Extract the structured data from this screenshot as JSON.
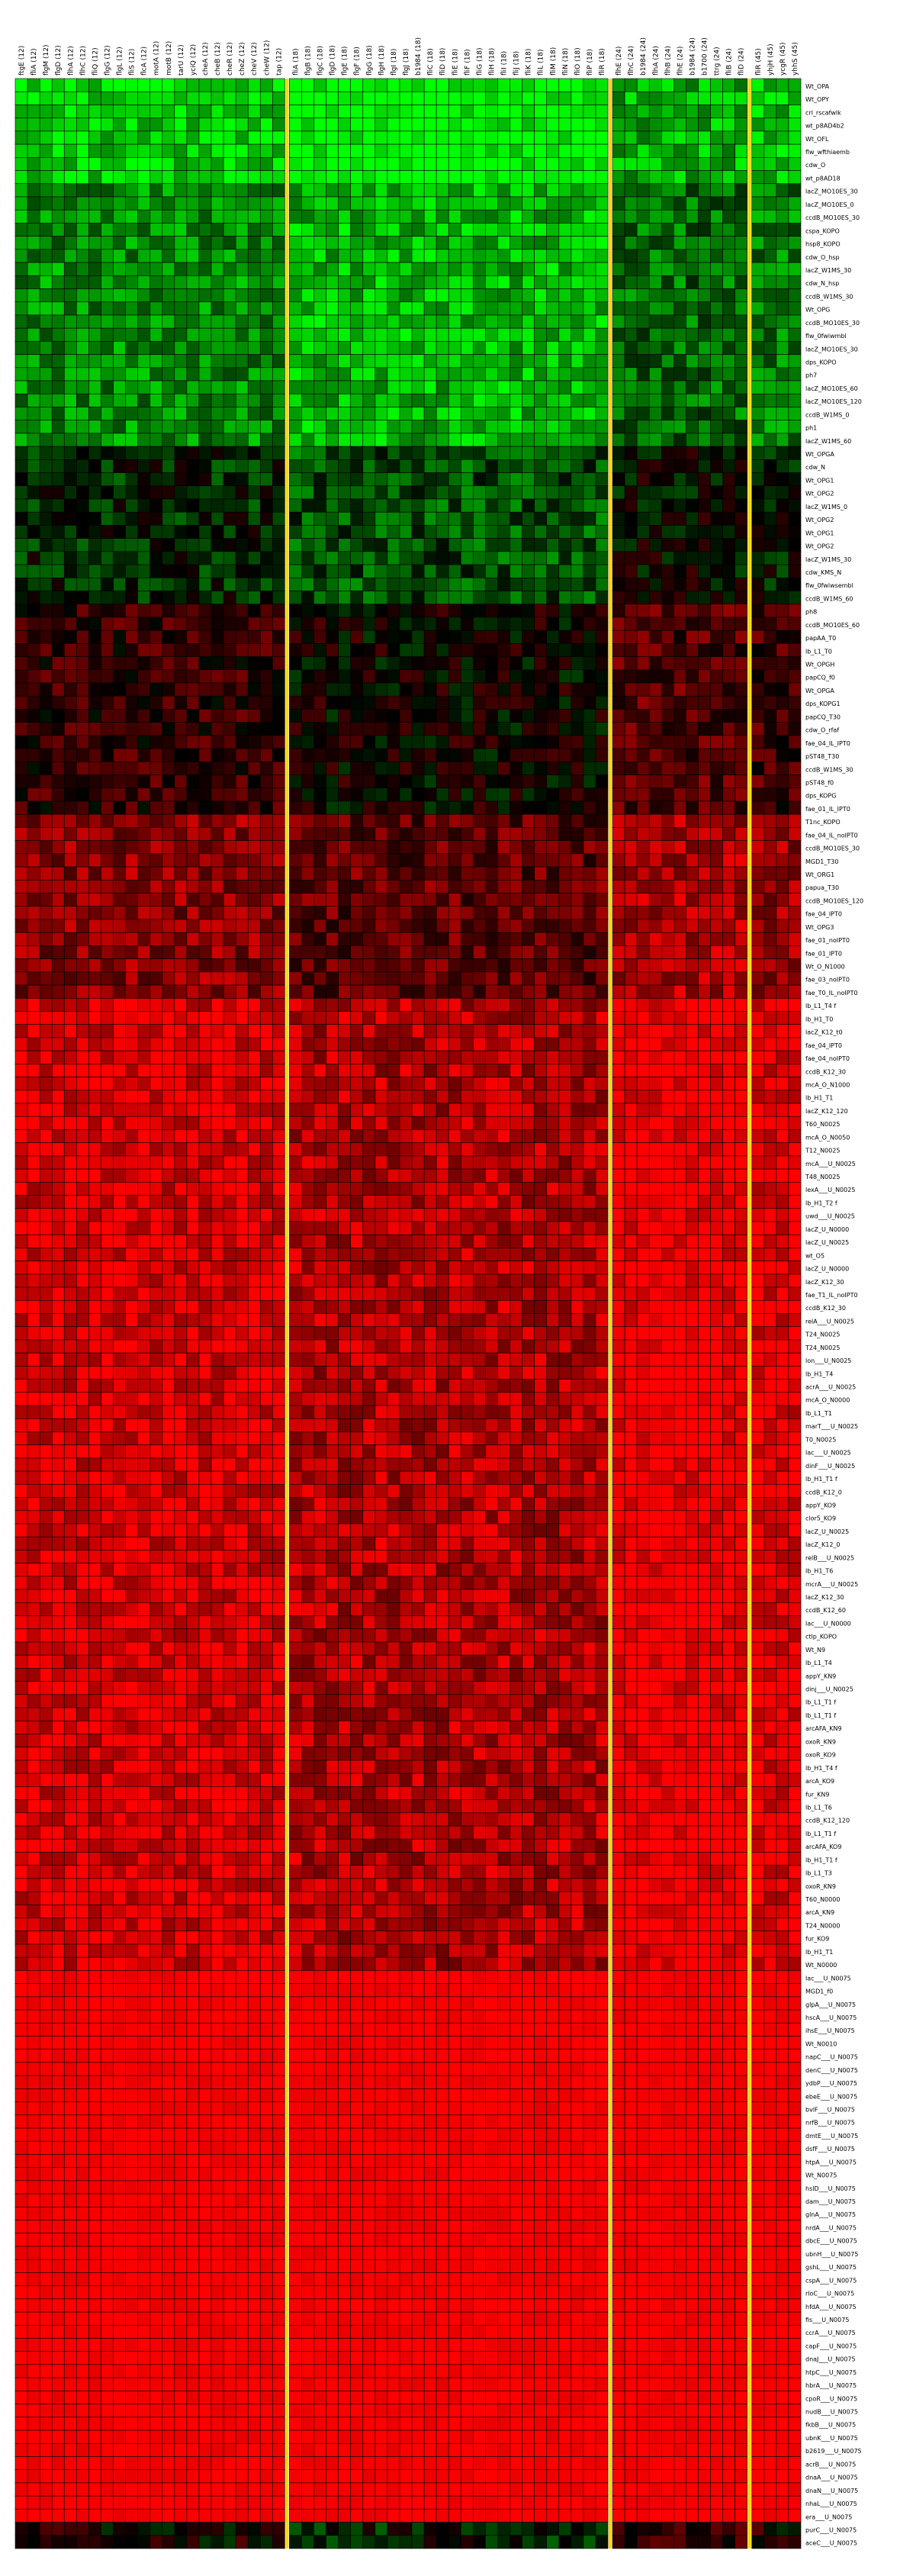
{
  "chart_data": {
    "type": "heatmap",
    "title": "",
    "colors": {
      "low": "#00ff00",
      "mid": "#000000",
      "high": "#ff0000",
      "separator": "#ffd700",
      "grid": "#000000"
    },
    "value_range": [
      -1,
      1
    ],
    "columns": [
      "ftgE (12)",
      "fliA (12)",
      "flgM (12)",
      "flgD (12)",
      "flhA (12)",
      "flhC (12)",
      "fliQ (12)",
      "flgG (12)",
      "flgL (12)",
      "fliS (12)",
      "flcA (12)",
      "motA (12)",
      "motB (12)",
      "tarU (12)",
      "yciQ (12)",
      "cheA (12)",
      "cheB (12)",
      "cheR (12)",
      "cheZ (12)",
      "cheV (12)",
      "cheW (12)",
      "tap (12)",
      "fliA (18)",
      "flgB (18)",
      "flgC (18)",
      "flgD (18)",
      "flgE (18)",
      "flgF (18)",
      "flgG (18)",
      "flgH (18)",
      "flgI (18)",
      "flgJ (18)",
      "b1984 (18)",
      "fliC (18)",
      "fliD (18)",
      "fliE (18)",
      "fliF (18)",
      "fliG (18)",
      "fliH (18)",
      "fliI (18)",
      "fliJ (18)",
      "fliK (18)",
      "fliL (18)",
      "fliM (18)",
      "fliN (18)",
      "fliO (18)",
      "fliP (18)",
      "fliR (18)",
      "flhE (24)",
      "flhC (24)",
      "b1984 (24)",
      "flhA (24)",
      "flhB (24)",
      "flhE (24)",
      "b1984 (24)",
      "b1700 (24)",
      "ttrg (24)",
      "fliB (24)",
      "fliD (24)",
      "fliR (45)",
      "yhjH (45)",
      "ycgR (45)",
      "yhhS (45)"
    ],
    "group_sizes": [
      22,
      26,
      11,
      4
    ],
    "rows": [
      "Wt_OPA",
      "Wt_OPY",
      "crl_rscafwlk",
      "wt_p8AD4b2",
      "Wt_OFL",
      "flw_wfthiaemb",
      "cdw_O",
      "wt_p8AD18",
      "lacZ_MO10ES_30",
      "lacZ_MO10ES_0",
      "ccdB_MO10ES_30",
      "cspa_KOPO",
      "hsp8_KOPO",
      "cdw_O_hsp",
      "lacZ_W1MS_30",
      "cdw_N_hsp",
      "ccdB_W1MS_30",
      "Wt_OPG",
      "ccdB_MO10ES_30",
      "flw_0fwiwmbl",
      "lacZ_MO10ES_30",
      "dps_KOPO",
      "ph7",
      "lacZ_MO10ES_60",
      "lacZ_MO10ES_120",
      "ccdB_W1MS_0",
      "ph1",
      "lacZ_W1MS_60",
      "Wt_OPGA",
      "cdw_N",
      "Wt_OPG1",
      "Wt_OPG2",
      "lacZ_W1MS_0",
      "Wt_OPG2",
      "Wt_OPG1",
      "Wt_OPG2",
      "lacZ_W1MS_30",
      "cdw_KMS_N",
      "flw_0fwiwsembl",
      "ccdB_W1MS_60",
      "ph8",
      "ccdB_MO10ES_60",
      "papAA_T0",
      "lb_L1_T0",
      "Wt_OPGH",
      "papCQ_f0",
      "Wt_OPGA",
      "dps_KOPG1",
      "papCQ_T30",
      "cdw_O_rfaf",
      "fae_04_IL_IPT0",
      "pST48_T30",
      "ccdB_W1MS_30",
      "pST48_f0",
      "dps_KOPG",
      "fae_01_IL_IPT0",
      "T1nc_KOPO",
      "fae_04_IL_noIPT0",
      "ccdB_MO10ES_30",
      "MGD1_T30",
      "Wt_ORG1",
      "papua_T30",
      "ccdB_MO10ES_120",
      "fae_04_IPT0",
      "Wt_OPG3",
      "fae_01_noIPT0",
      "fae_01_IPT0",
      "Wt_O_N1000",
      "fae_03_noIPT0",
      "fae_T0_IL_noIPT0",
      "lb_L1_T4 f",
      "lb_H1_T0",
      "lacZ_K12_t0",
      "fae_04_IPT0",
      "fae_04_noIPT0",
      "ccdB_K12_30",
      "mcA_O_N1000",
      "lb_H1_T1",
      "lacZ_K12_120",
      "T60_N0025",
      "mcA_O_N0050",
      "T12_N0025",
      "mcA___U_N0025",
      "T48_N0025",
      "lexA___U_N0025",
      "lb_H1_T2 f",
      "uwd___U_N0025",
      "lacZ_U_N0000",
      "lacZ_U_N0025",
      "wt_O5",
      "lacZ_U_N0000",
      "lacZ_K12_30",
      "fae_T1_IL_noIPT0",
      "ccdB_K12_30",
      "relA___U_N0025",
      "T24_N0025",
      "T24_N0025",
      "lon___U_N0025",
      "lb_H1_T4",
      "acrA___U_N0025",
      "mcA_O_N0000",
      "lb_L1_T1",
      "marT___U_N0025",
      "T0_N0025",
      "lac___U_N0025",
      "dinF___U_N0025",
      "lb_H1_T1 f",
      "ccdB_K12_0",
      "appY_KO9",
      "clor5_KO9",
      "lacZ_U_N0025",
      "lacZ_K12_0",
      "relB___U_N0025",
      "lb_H1_T6",
      "mcrA___U_N0025",
      "lacZ_K12_30",
      "ccdB_K12_60",
      "lac___U_N0000",
      "ctlp_KOPO",
      "Wt_N9",
      "lb_L1_T4",
      "appY_KN9",
      "dinj___U_N0025",
      "lb_L1_T1 f",
      "lb_L1_T1 f",
      "arcAFA_KN9",
      "oxoR_KN9",
      "oxoR_KO9",
      "lb_H1_T4 f",
      "arcA_KO9",
      "fur_KN9",
      "lb_L1_T6",
      "ccdB_K12_120",
      "lb_L1_T1 f",
      "arcAFA_KO9",
      "lb_H1_T1 f",
      "lb_L1_T3",
      "oxoR_KN9",
      "T60_N0000",
      "arcA_KN9",
      "T24_N0000",
      "fur_KO9",
      "lb_H1_T1",
      "Wt_N0000",
      "lac___U_N0075",
      "MGD1_f0",
      "glpA___U_N0075",
      "hscA___U_N0075",
      "ihsE___U_N0075",
      "Wt_N0010",
      "napC___U_N0075",
      "denC___U_N0075",
      "ydbP___U_N0075",
      "ebeE___U_N0075",
      "bvlF___U_N0075",
      "nrfB___U_N0075",
      "dmtE___U_N0075",
      "dsfF___U_N0075",
      "htpA___U_N0075",
      "Wt_N0075",
      "hslD___U_N0075",
      "dam___U_N0075",
      "glnA___U_N0075",
      "nrdA___U_N0075",
      "dbcE___U_N0075",
      "ubnH___U_N0075",
      "gshL___U_N0075",
      "cspA___U_N0075",
      "rloC___U_N0075",
      "hfdA___U_N0075",
      "fis___U_N0075",
      "ccrA___U_N0075",
      "capF___U_N0075",
      "dnaJ___U_N0075",
      "htpC___U_N0075",
      "hbrA___U_N0075",
      "cpoR___U_N0075",
      "nudB___U_N0075",
      "fkbB___U_N0075",
      "ubnK___U_N0075",
      "b2619___U_N0075",
      "acrB___U_N0075",
      "dnaA___U_N0075",
      "dnaN___U_N0075",
      "nhaL___U_N0075",
      "era___U_N0075",
      "purC___U_N0075",
      "aceC___U_N0075"
    ],
    "row_bands": [
      {
        "rows": [
          0,
          8
        ],
        "mean": -0.88
      },
      {
        "rows": [
          8,
          28
        ],
        "mean": -0.6
      },
      {
        "rows": [
          28,
          40
        ],
        "mean": -0.2
      },
      {
        "rows": [
          40,
          56
        ],
        "mean": 0.15
      },
      {
        "rows": [
          56,
          70
        ],
        "mean": 0.5
      },
      {
        "rows": [
          70,
          144
        ],
        "mean": 0.82
      },
      {
        "rows": [
          144,
          186
        ],
        "mean": 0.97
      }
    ],
    "group_offsets": [
      0.05,
      -0.12,
      0.18,
      0.1
    ],
    "legend": "none",
    "grid": true
  }
}
